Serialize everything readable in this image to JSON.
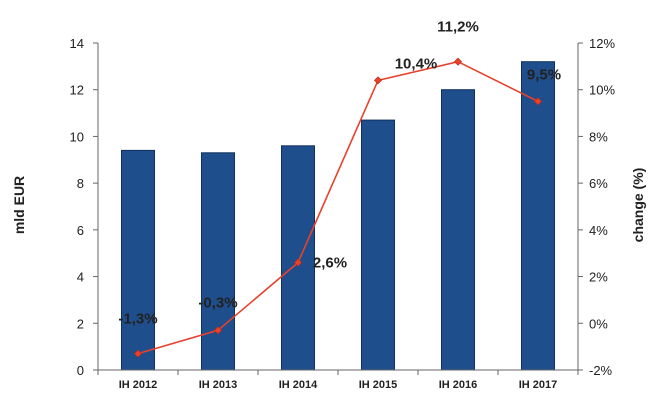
{
  "chart_data": {
    "type": "bar",
    "categories": [
      "IH 2012",
      "IH 2013",
      "IH 2014",
      "IH 2015",
      "IH 2016",
      "IH 2017"
    ],
    "series": [
      {
        "type": "bar",
        "axis": "left",
        "values": [
          9.4,
          9.3,
          9.6,
          10.7,
          12.0,
          13.2
        ],
        "color": "#1f4e8c"
      },
      {
        "type": "line",
        "axis": "right",
        "values": [
          -1.3,
          -0.3,
          2.6,
          10.4,
          11.2,
          9.5
        ],
        "labels": [
          "-1,3%",
          "-0,3%",
          "2,6%",
          "10,4%",
          "11,2%",
          "9,5%"
        ],
        "color": "#e8412c"
      }
    ],
    "ylabel": "mld EUR",
    "ylim": [
      0,
      14
    ],
    "yticks": [
      "0",
      "2",
      "4",
      "6",
      "8",
      "10",
      "12",
      "14"
    ],
    "y2label": "change (%)",
    "y2lim": [
      -2,
      12
    ],
    "y2ticks": [
      "-2%",
      "0%",
      "2%",
      "4%",
      "6%",
      "8%",
      "10%",
      "12%"
    ],
    "grid": false,
    "legend": "none"
  }
}
